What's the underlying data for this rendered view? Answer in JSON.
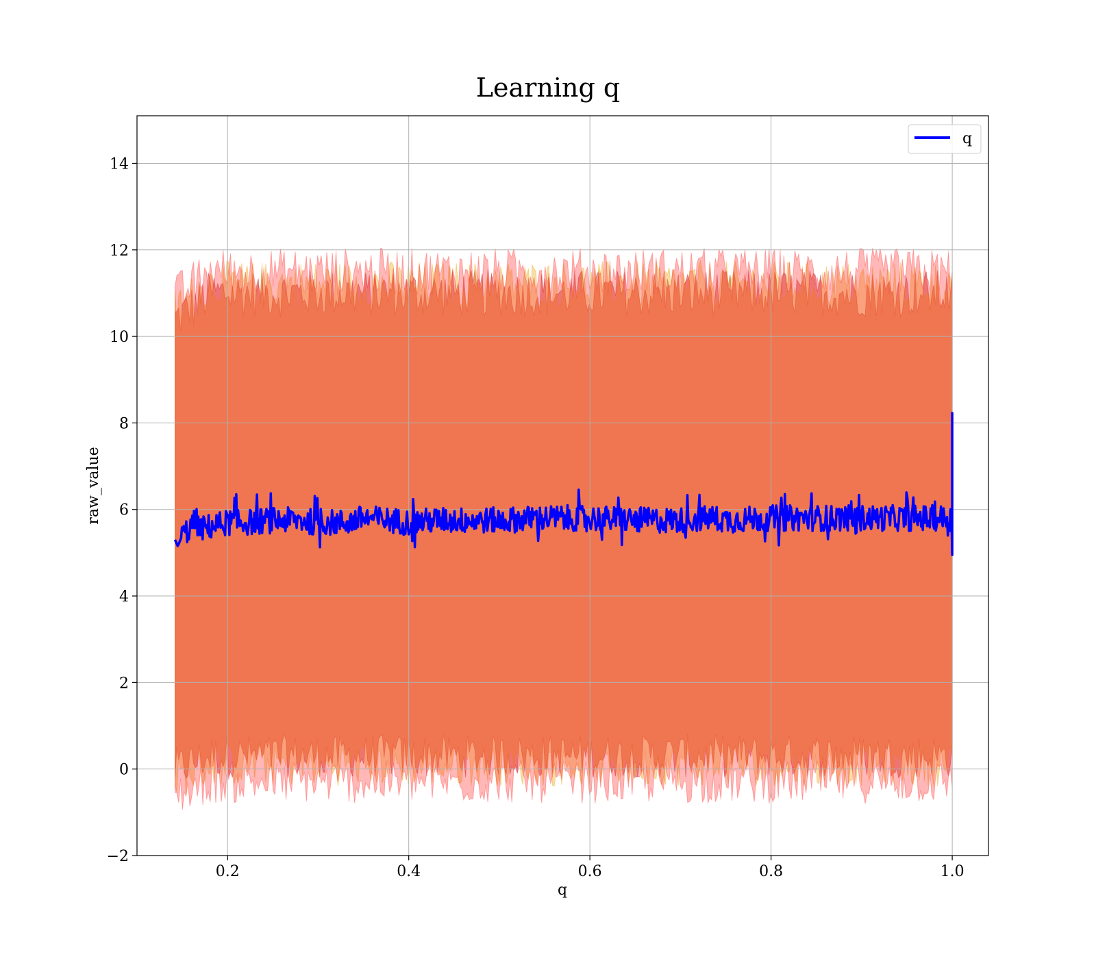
{
  "chart_data": {
    "type": "line",
    "title": "Learning q",
    "xlabel": "q",
    "ylabel": "raw_value",
    "xlim": [
      0.1,
      1.04
    ],
    "ylim": [
      -2,
      15.1
    ],
    "xticks": [
      0.2,
      0.4,
      0.6,
      0.8,
      1.0
    ],
    "xtick_labels": [
      "0.2",
      "0.4",
      "0.6",
      "0.8",
      "1.0"
    ],
    "yticks": [
      -2,
      0,
      2,
      4,
      6,
      8,
      10,
      12,
      14
    ],
    "ytick_labels": [
      "−2",
      "0",
      "2",
      "4",
      "6",
      "8",
      "10",
      "12",
      "14"
    ],
    "grid": true,
    "legend": {
      "placement": "top-right",
      "entries": [
        "q"
      ]
    },
    "x_range": [
      0.142,
      1.0
    ],
    "series": [
      {
        "name": "q",
        "color": "#0000ff",
        "x": [
          0.142,
          0.145,
          0.15,
          0.155,
          0.16,
          0.165,
          0.17,
          0.18,
          0.19,
          0.2,
          0.22,
          0.25,
          0.28,
          0.3,
          0.33,
          0.35,
          0.38,
          0.4,
          0.43,
          0.45,
          0.5,
          0.55,
          0.6,
          0.65,
          0.7,
          0.735,
          0.75,
          0.8,
          0.85,
          0.9,
          0.95,
          0.999,
          1.0
        ],
        "values": [
          5.3,
          5.15,
          5.4,
          5.5,
          5.6,
          5.75,
          5.55,
          5.6,
          5.65,
          5.7,
          5.7,
          5.75,
          5.75,
          5.7,
          5.7,
          5.8,
          5.75,
          5.7,
          5.75,
          5.75,
          5.75,
          5.8,
          5.8,
          5.75,
          5.75,
          5.8,
          5.75,
          5.8,
          5.8,
          5.8,
          5.8,
          5.8,
          8.25
        ],
        "noise_amplitude": 0.3
      }
    ],
    "bands": [
      {
        "color": "#c00000",
        "opacity": 0.4,
        "upper_mean": 11.0,
        "lower_mean": 0.3
      },
      {
        "color": "#e8a000",
        "opacity": 0.35,
        "upper_mean": 11.2,
        "lower_mean": 0.1
      },
      {
        "color": "#ff3030",
        "opacity": 0.35,
        "upper_mean": 11.5,
        "lower_mean": -0.3
      }
    ]
  }
}
